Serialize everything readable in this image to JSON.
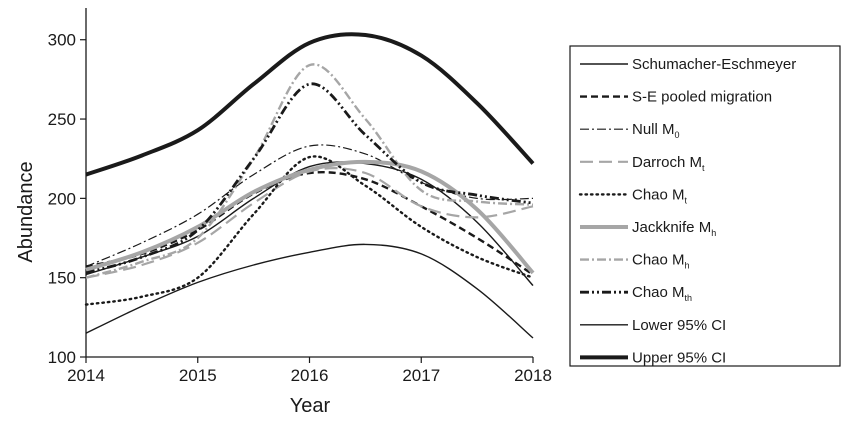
{
  "chart_data": {
    "type": "line",
    "title": "",
    "xlabel": "Year",
    "ylabel": "Abundance",
    "x": [
      2014,
      2015,
      2016,
      2017,
      2018
    ],
    "xlim": [
      2014,
      2018
    ],
    "ylim": [
      100,
      320
    ],
    "xticks": [
      2014,
      2015,
      2016,
      2017,
      2018
    ],
    "yticks": [
      100,
      150,
      200,
      250,
      300
    ],
    "grid": false,
    "legend_position": "right",
    "series": [
      {
        "name": "Schumacher-Eschmeyer",
        "label_main": "Schumacher-Eschmeyer",
        "label_sub": "",
        "style": "solid",
        "color": "#1a1a1a",
        "width": 1.4,
        "points": [
          [
            2014,
            152
          ],
          [
            2014.5,
            163
          ],
          [
            2015,
            176
          ],
          [
            2015.5,
            200
          ],
          [
            2016,
            220
          ],
          [
            2016.5,
            222
          ],
          [
            2017,
            212
          ],
          [
            2017.5,
            185
          ],
          [
            2018,
            145
          ]
        ]
      },
      {
        "name": "S-E pooled migration",
        "label_main": "S-E pooled migration",
        "label_sub": "",
        "style": "dashed",
        "color": "#1a1a1a",
        "width": 2.4,
        "points": [
          [
            2014,
            157
          ],
          [
            2014.5,
            165
          ],
          [
            2015,
            180
          ],
          [
            2015.5,
            203
          ],
          [
            2016,
            216
          ],
          [
            2016.5,
            212
          ],
          [
            2017,
            195
          ],
          [
            2017.5,
            175
          ],
          [
            2018,
            152
          ]
        ]
      },
      {
        "name": "Null M0",
        "label_main": "Null M",
        "label_sub": "0",
        "style": "dashdot",
        "color": "#1a1a1a",
        "width": 1.2,
        "points": [
          [
            2014,
            157
          ],
          [
            2014.5,
            172
          ],
          [
            2015,
            190
          ],
          [
            2015.5,
            215
          ],
          [
            2016,
            233
          ],
          [
            2016.5,
            228
          ],
          [
            2017,
            210
          ],
          [
            2017.5,
            200
          ],
          [
            2018,
            200
          ]
        ]
      },
      {
        "name": "Darroch Mt",
        "label_main": "Darroch M",
        "label_sub": "t",
        "style": "longdash",
        "color": "#a6a6a6",
        "width": 2.2,
        "points": [
          [
            2014,
            150
          ],
          [
            2014.5,
            158
          ],
          [
            2015,
            172
          ],
          [
            2015.5,
            197
          ],
          [
            2016,
            217
          ],
          [
            2016.5,
            216
          ],
          [
            2017,
            195
          ],
          [
            2017.5,
            188
          ],
          [
            2018,
            195
          ]
        ]
      },
      {
        "name": "Chao Mt",
        "label_main": "Chao M",
        "label_sub": "t",
        "style": "dotted",
        "color": "#1a1a1a",
        "width": 2.4,
        "points": [
          [
            2014,
            133
          ],
          [
            2014.5,
            138
          ],
          [
            2015,
            150
          ],
          [
            2015.5,
            190
          ],
          [
            2016,
            226
          ],
          [
            2016.5,
            208
          ],
          [
            2017,
            182
          ],
          [
            2017.5,
            163
          ],
          [
            2018,
            150
          ]
        ]
      },
      {
        "name": "Jackknife Mh",
        "label_main": "Jackknife M",
        "label_sub": "h",
        "style": "solid",
        "color": "#a6a6a6",
        "width": 4,
        "points": [
          [
            2014,
            155
          ],
          [
            2014.5,
            166
          ],
          [
            2015,
            182
          ],
          [
            2015.5,
            204
          ],
          [
            2016,
            218
          ],
          [
            2016.5,
            223
          ],
          [
            2017,
            217
          ],
          [
            2017.5,
            193
          ],
          [
            2018,
            153
          ]
        ]
      },
      {
        "name": "Chao Mh",
        "label_main": "Chao M",
        "label_sub": "h",
        "style": "dashdot",
        "color": "#a6a6a6",
        "width": 2.4,
        "points": [
          [
            2014,
            150
          ],
          [
            2014.5,
            160
          ],
          [
            2015,
            175
          ],
          [
            2015.5,
            225
          ],
          [
            2016,
            284
          ],
          [
            2016.5,
            250
          ],
          [
            2017,
            205
          ],
          [
            2017.5,
            198
          ],
          [
            2018,
            196
          ]
        ]
      },
      {
        "name": "Chao Mth",
        "label_main": "Chao M",
        "label_sub": "th",
        "style": "dashdotdot",
        "color": "#1a1a1a",
        "width": 2.8,
        "points": [
          [
            2014,
            153
          ],
          [
            2014.5,
            163
          ],
          [
            2015,
            180
          ],
          [
            2015.5,
            225
          ],
          [
            2016,
            272
          ],
          [
            2016.5,
            240
          ],
          [
            2017,
            210
          ],
          [
            2017.5,
            202
          ],
          [
            2018,
            197
          ]
        ]
      },
      {
        "name": "Lower 95% CI",
        "label_main": "Lower 95% CI",
        "label_sub": "",
        "style": "solid",
        "color": "#1a1a1a",
        "width": 1.4,
        "points": [
          [
            2014,
            115
          ],
          [
            2014.5,
            132
          ],
          [
            2015,
            147
          ],
          [
            2015.5,
            158
          ],
          [
            2016,
            166
          ],
          [
            2016.5,
            171
          ],
          [
            2017,
            165
          ],
          [
            2017.5,
            143
          ],
          [
            2018,
            112
          ]
        ]
      },
      {
        "name": "Upper 95% CI",
        "label_main": "Upper 95% CI",
        "label_sub": "",
        "style": "solid",
        "color": "#1a1a1a",
        "width": 4,
        "points": [
          [
            2014,
            215
          ],
          [
            2014.5,
            227
          ],
          [
            2015,
            243
          ],
          [
            2015.5,
            272
          ],
          [
            2016,
            298
          ],
          [
            2016.5,
            303
          ],
          [
            2017,
            290
          ],
          [
            2017.5,
            260
          ],
          [
            2018,
            222
          ]
        ]
      }
    ]
  }
}
